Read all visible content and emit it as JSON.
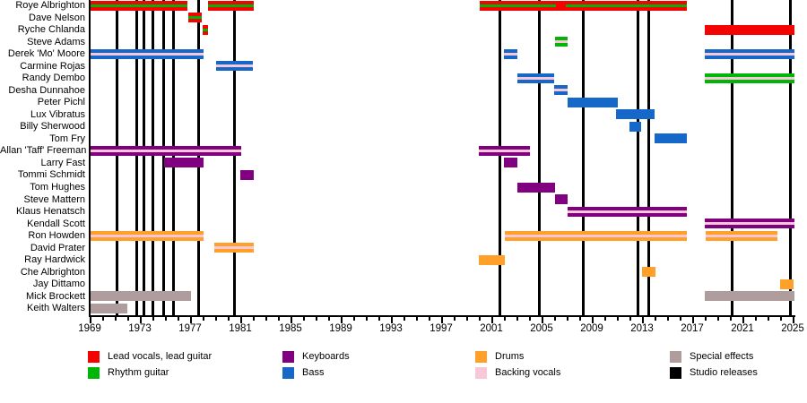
{
  "chart_data": {
    "type": "timeline",
    "title": "Band members timeline (no visible title in image)",
    "x_axis": {
      "min": 1969,
      "max": 2025,
      "major_tick_step": 4,
      "minor_tick_step": 1,
      "tick_labels": [
        "1969",
        "1973",
        "1977",
        "1981",
        "1985",
        "1989",
        "1993",
        "1997",
        "2001",
        "2005",
        "2009",
        "2013",
        "2017",
        "2021",
        "2025"
      ]
    },
    "palette": {
      "lead": "#f40400",
      "rhythm": "#00b408",
      "keyboards": "#800080",
      "bass": "#1668c8",
      "drums": "#ffa028",
      "backing": "#f8c8d8",
      "effects": "#af9c9c",
      "releases": "#000000"
    },
    "studio_release_years": [
      1971.2,
      1972.75,
      1973.35,
      1974.0,
      1974.9,
      1975.7,
      1977.65,
      1980.55,
      2001.65,
      2004.85,
      2008.3,
      2012.7,
      2013.5,
      2020.2,
      2024.8
    ],
    "members": [
      {
        "name": "Roye Albrighton",
        "bars": [
          {
            "from": 1969.0,
            "to": 1976.75,
            "role": "lead",
            "stripe": "rhythm"
          },
          {
            "from": 1978.45,
            "to": 1982.1,
            "role": "lead",
            "stripe": "rhythm"
          },
          {
            "from": 2000.05,
            "to": 2006.15,
            "role": "lead",
            "stripe": "rhythm"
          },
          {
            "from": 2006.15,
            "to": 2006.95,
            "role": "lead",
            "stripe": null
          },
          {
            "from": 2006.95,
            "to": 2016.6,
            "role": "lead",
            "stripe": "rhythm"
          }
        ]
      },
      {
        "name": "Dave Nelson",
        "bars": [
          {
            "from": 1976.85,
            "to": 1977.9,
            "role": "lead",
            "stripe": "rhythm"
          }
        ]
      },
      {
        "name": "Ryche Chlanda",
        "bars": [
          {
            "from": 1978.0,
            "to": 1978.45,
            "role": "lead",
            "stripe": "rhythm"
          },
          {
            "from": 2018.0,
            "to": 2025.15,
            "role": "lead",
            "stripe": null
          }
        ]
      },
      {
        "name": "Steve Adams",
        "bars": [
          {
            "from": 2006.05,
            "to": 2007.1,
            "role": "rhythm",
            "stripe": "backing"
          }
        ]
      },
      {
        "name": "Derek 'Mo' Moore",
        "bars": [
          {
            "from": 1969.0,
            "to": 1978.05,
            "role": "bass",
            "stripe": "backing"
          },
          {
            "from": 2002.0,
            "to": 2003.05,
            "role": "bass",
            "stripe": "backing"
          },
          {
            "from": 2018.0,
            "to": 2025.15,
            "role": "bass",
            "stripe": "backing"
          }
        ]
      },
      {
        "name": "Carmine Rojas",
        "bars": [
          {
            "from": 1979.05,
            "to": 1982.0,
            "role": "bass",
            "stripe": "backing"
          }
        ]
      },
      {
        "name": "Randy Dembo",
        "bars": [
          {
            "from": 2003.05,
            "to": 2006.0,
            "role": "bass",
            "stripe": "backing"
          },
          {
            "from": 2018.0,
            "to": 2025.15,
            "role": "rhythm",
            "stripe": "backing"
          }
        ]
      },
      {
        "name": "Desha Dunnahoe",
        "bars": [
          {
            "from": 2006.0,
            "to": 2007.1,
            "role": "bass",
            "stripe": "backing"
          }
        ]
      },
      {
        "name": "Peter Pichl",
        "bars": [
          {
            "from": 2007.1,
            "to": 2011.1,
            "role": "bass",
            "stripe": null
          }
        ]
      },
      {
        "name": "Lux Vibratus",
        "bars": [
          {
            "from": 2010.95,
            "to": 2014.0,
            "role": "bass",
            "stripe": null
          }
        ]
      },
      {
        "name": "Billy Sherwood",
        "bars": [
          {
            "from": 2012.0,
            "to": 2012.95,
            "role": "bass",
            "stripe": null
          }
        ]
      },
      {
        "name": "Tom Fry",
        "bars": [
          {
            "from": 2014.0,
            "to": 2016.6,
            "role": "bass",
            "stripe": null
          }
        ]
      },
      {
        "name": "Allan 'Taff' Freeman",
        "bars": [
          {
            "from": 1969.0,
            "to": 1981.1,
            "role": "keyboards",
            "stripe": "backing"
          },
          {
            "from": 2000.0,
            "to": 2004.1,
            "role": "keyboards",
            "stripe": "backing"
          }
        ]
      },
      {
        "name": "Larry Fast",
        "bars": [
          {
            "from": 1974.95,
            "to": 1978.05,
            "role": "keyboards",
            "stripe": null
          },
          {
            "from": 2002.0,
            "to": 2003.05,
            "role": "keyboards",
            "stripe": null
          }
        ]
      },
      {
        "name": "Tommi Schmidt",
        "bars": [
          {
            "from": 1981.0,
            "to": 1982.1,
            "role": "keyboards",
            "stripe": null
          }
        ]
      },
      {
        "name": "Tom Hughes",
        "bars": [
          {
            "from": 2003.05,
            "to": 2006.1,
            "role": "keyboards",
            "stripe": null
          }
        ]
      },
      {
        "name": "Steve Mattern",
        "bars": [
          {
            "from": 2006.1,
            "to": 2007.1,
            "role": "keyboards",
            "stripe": null
          }
        ]
      },
      {
        "name": "Klaus Henatsch",
        "bars": [
          {
            "from": 2007.1,
            "to": 2016.6,
            "role": "keyboards",
            "stripe": "backing"
          }
        ]
      },
      {
        "name": "Kendall Scott",
        "bars": [
          {
            "from": 2018.0,
            "to": 2025.15,
            "role": "keyboards",
            "stripe": "backing"
          }
        ]
      },
      {
        "name": "Ron Howden",
        "bars": [
          {
            "from": 1969.0,
            "to": 1978.05,
            "role": "drums",
            "stripe": "backing"
          },
          {
            "from": 2002.05,
            "to": 2016.6,
            "role": "drums",
            "stripe": "backing"
          },
          {
            "from": 2018.05,
            "to": 2023.8,
            "role": "drums",
            "stripe": "backing"
          }
        ]
      },
      {
        "name": "David Prater",
        "bars": [
          {
            "from": 1978.95,
            "to": 1982.05,
            "role": "drums",
            "stripe": "backing"
          }
        ]
      },
      {
        "name": "Ray Hardwick",
        "bars": [
          {
            "from": 2000.0,
            "to": 2002.05,
            "role": "drums",
            "stripe": null
          }
        ]
      },
      {
        "name": "Che Albrighton",
        "bars": [
          {
            "from": 2013.0,
            "to": 2014.05,
            "role": "drums",
            "stripe": null
          }
        ]
      },
      {
        "name": "Jay Dittamo",
        "bars": [
          {
            "from": 2024.0,
            "to": 2025.1,
            "role": "drums",
            "stripe": null
          }
        ]
      },
      {
        "name": "Mick Brockett",
        "bars": [
          {
            "from": 1969.0,
            "to": 1977.1,
            "role": "effects",
            "stripe": null
          },
          {
            "from": 2018.0,
            "to": 2025.15,
            "role": "effects",
            "stripe": null
          }
        ]
      },
      {
        "name": "Keith Walters",
        "bars": [
          {
            "from": 1969.0,
            "to": 1972.0,
            "role": "effects",
            "stripe": null
          }
        ]
      }
    ]
  },
  "legend": {
    "items": [
      {
        "label": "Lead vocals, lead guitar",
        "role": "lead"
      },
      {
        "label": "Rhythm guitar",
        "role": "rhythm"
      },
      {
        "label": "Keyboards",
        "role": "keyboards"
      },
      {
        "label": "Bass",
        "role": "bass"
      },
      {
        "label": "Drums",
        "role": "drums"
      },
      {
        "label": "Backing vocals",
        "role": "backing"
      },
      {
        "label": "Special effects",
        "role": "effects"
      },
      {
        "label": "Studio releases",
        "role": "releases"
      }
    ]
  }
}
